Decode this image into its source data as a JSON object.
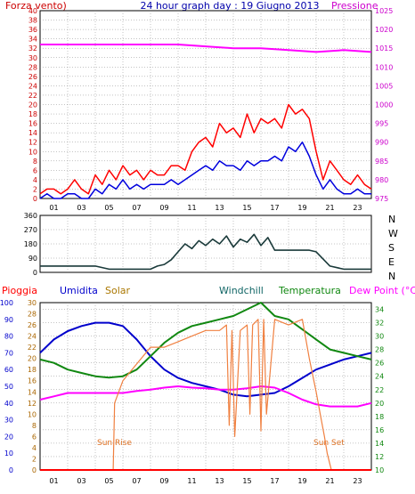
{
  "header": {
    "wind_label": "Forza vento)",
    "title": "24 hour graph day : 19 Giugno 2013",
    "pressure_label": "Pressione"
  },
  "direction_labels": [
    "N",
    "W",
    "S",
    "E",
    "N"
  ],
  "bottom_legend": {
    "rain": "Pioggia",
    "humidity": "Umidita",
    "solar": "Solar",
    "windchill": "Windchill",
    "temperature": "Temperatura",
    "dewpoint": "Dew Point (°C)"
  },
  "annotations": {
    "sunrise": "Sun Rise",
    "sunset": "Sun Set"
  },
  "colors": {
    "wind_gust": "#ff0000",
    "wind_avg": "#0000dd",
    "pressure": "#ff00ff",
    "direction": "#1a3a3a",
    "humidity": "#0000cc",
    "solar": "#f08040",
    "temperature": "#118811",
    "dewpoint": "#ff00ff",
    "rain": "#ff0000",
    "grid": "#888888",
    "axis_left_top": "#cc0000",
    "axis_right_top": "#cc00cc",
    "axis_right_bottom": "#118811"
  },
  "chart_data": [
    {
      "type": "line",
      "panel": "wind_pressure",
      "x_ticks": [
        "01",
        "03",
        "05",
        "07",
        "09",
        "11",
        "13",
        "15",
        "17",
        "19",
        "21",
        "23"
      ],
      "y_left_ticks": [
        0,
        2,
        4,
        6,
        8,
        10,
        12,
        14,
        16,
        18,
        20,
        22,
        24,
        26,
        28,
        30,
        32,
        34,
        36,
        38,
        40
      ],
      "y_right_ticks": [
        975,
        980,
        985,
        990,
        995,
        1000,
        1005,
        1010,
        1015,
        1020,
        1025
      ],
      "x_range": [
        0,
        24
      ],
      "y_left_range": [
        0,
        40
      ],
      "y_right_range": [
        975,
        1025
      ],
      "series": [
        {
          "name": "",
          "key": "gust",
          "axis": "left",
          "x": [
            0,
            0.5,
            1,
            1.5,
            2,
            2.5,
            3,
            3.5,
            4,
            4.5,
            5,
            5.5,
            6,
            6.5,
            7,
            7.5,
            8,
            8.5,
            9,
            9.5,
            10,
            10.5,
            11,
            11.5,
            12,
            12.5,
            13,
            13.5,
            14,
            14.5,
            15,
            15.5,
            16,
            16.5,
            17,
            17.5,
            18,
            18.5,
            19,
            19.5,
            20,
            20.5,
            21,
            21.5,
            22,
            22.5,
            23,
            23.5,
            24
          ],
          "values": [
            1,
            2,
            2,
            1,
            2,
            4,
            2,
            1,
            5,
            3,
            6,
            4,
            7,
            5,
            6,
            4,
            6,
            5,
            5,
            7,
            7,
            6,
            10,
            12,
            13,
            11,
            16,
            14,
            15,
            13,
            18,
            14,
            17,
            16,
            17,
            15,
            20,
            18,
            19,
            17,
            10,
            4,
            8,
            6,
            4,
            3,
            5,
            3,
            2
          ]
        },
        {
          "name": "",
          "key": "avg",
          "axis": "left",
          "x": [
            0,
            0.5,
            1,
            1.5,
            2,
            2.5,
            3,
            3.5,
            4,
            4.5,
            5,
            5.5,
            6,
            6.5,
            7,
            7.5,
            8,
            8.5,
            9,
            9.5,
            10,
            10.5,
            11,
            11.5,
            12,
            12.5,
            13,
            13.5,
            14,
            14.5,
            15,
            15.5,
            16,
            16.5,
            17,
            17.5,
            18,
            18.5,
            19,
            19.5,
            20,
            20.5,
            21,
            21.5,
            22,
            22.5,
            23,
            23.5,
            24
          ],
          "values": [
            0,
            1,
            0,
            0,
            1,
            1,
            0,
            0,
            2,
            1,
            3,
            2,
            4,
            2,
            3,
            2,
            3,
            3,
            3,
            4,
            3,
            4,
            5,
            6,
            7,
            6,
            8,
            7,
            7,
            6,
            8,
            7,
            8,
            8,
            9,
            8,
            11,
            10,
            12,
            9,
            5,
            2,
            4,
            2,
            1,
            1,
            2,
            1,
            1
          ]
        },
        {
          "name": "",
          "key": "pressure",
          "axis": "right",
          "x": [
            0,
            2,
            4,
            6,
            8,
            10,
            12,
            14,
            16,
            18,
            20,
            22,
            24
          ],
          "values": [
            1016,
            1016,
            1016,
            1016,
            1016,
            1016,
            1015.5,
            1015,
            1015,
            1014.5,
            1014,
            1014.5,
            1014
          ]
        }
      ]
    },
    {
      "type": "line",
      "panel": "wind_direction",
      "x_range": [
        0,
        24
      ],
      "y_ticks": [
        0,
        90,
        180,
        270,
        360
      ],
      "y_range": [
        0,
        360
      ],
      "series": [
        {
          "name": "",
          "key": "direction",
          "x": [
            0,
            1,
            2,
            3,
            4,
            5,
            6,
            7,
            8,
            8.5,
            9,
            9.5,
            10,
            10.5,
            11,
            11.5,
            12,
            12.5,
            13,
            13.5,
            14,
            14.5,
            15,
            15.5,
            16,
            16.5,
            17,
            18,
            19,
            19.5,
            20,
            21,
            22,
            23,
            24
          ],
          "values": [
            40,
            40,
            40,
            40,
            40,
            20,
            20,
            20,
            20,
            40,
            50,
            80,
            130,
            180,
            150,
            200,
            170,
            210,
            180,
            230,
            160,
            210,
            190,
            240,
            170,
            220,
            140,
            140,
            140,
            140,
            130,
            40,
            20,
            20,
            20
          ]
        }
      ]
    },
    {
      "type": "line",
      "panel": "climate",
      "x_range": [
        0,
        24
      ],
      "y_far_left_ticks": [
        0,
        10,
        20,
        30,
        40,
        50,
        60,
        70,
        80,
        90,
        100
      ],
      "y_left_ticks": [
        0,
        2,
        4,
        6,
        8,
        10,
        12,
        14,
        16,
        18,
        20,
        22,
        24,
        26,
        28,
        30
      ],
      "y_right_ticks": [
        10,
        12,
        14,
        16,
        18,
        20,
        22,
        24,
        26,
        28,
        30,
        32,
        34
      ],
      "y_far_left_range": [
        0,
        100
      ],
      "y_right_range": [
        10,
        35
      ],
      "series": [
        {
          "name": "",
          "key": "humidity",
          "axis": "far_left",
          "x": [
            0,
            1,
            2,
            3,
            4,
            5,
            6,
            7,
            8,
            9,
            10,
            11,
            12,
            13,
            14,
            15,
            16,
            17,
            18,
            19,
            20,
            21,
            22,
            23,
            24
          ],
          "values": [
            70,
            78,
            83,
            86,
            88,
            88,
            86,
            78,
            68,
            60,
            55,
            52,
            50,
            48,
            45,
            44,
            45,
            46,
            50,
            55,
            60,
            63,
            66,
            68,
            70
          ]
        },
        {
          "name": "",
          "key": "temperature",
          "axis": "right",
          "x": [
            0,
            1,
            2,
            3,
            4,
            5,
            6,
            7,
            8,
            9,
            10,
            11,
            12,
            13,
            14,
            15,
            16,
            17,
            18,
            19,
            20,
            21,
            22,
            23,
            24
          ],
          "values": [
            26.5,
            26,
            25,
            24.5,
            24,
            23.8,
            24,
            25,
            27,
            29,
            30.5,
            31.5,
            32,
            32.5,
            33,
            34,
            35,
            33,
            32.5,
            31,
            29.5,
            28,
            27.5,
            27,
            26.5
          ]
        },
        {
          "name": "",
          "key": "dewpoint",
          "axis": "right",
          "x": [
            0,
            1,
            2,
            3,
            4,
            5,
            6,
            7,
            8,
            9,
            10,
            11,
            12,
            13,
            14,
            15,
            16,
            17,
            18,
            19,
            20,
            21,
            22,
            23,
            24
          ],
          "values": [
            20.5,
            21,
            21.5,
            21.5,
            21.5,
            21.5,
            21.5,
            21.8,
            22,
            22.3,
            22.5,
            22.3,
            22.2,
            22,
            22,
            22.2,
            22.5,
            22.3,
            21.5,
            20.5,
            19.8,
            19.5,
            19.5,
            19.5,
            20
          ]
        },
        {
          "name": "",
          "key": "solar",
          "axis": "left",
          "x": [
            5.3,
            5.4,
            6,
            7,
            8,
            9,
            10,
            11,
            12,
            13,
            13.5,
            13.7,
            13.9,
            14.1,
            14.5,
            15,
            15.2,
            15.4,
            15.8,
            16,
            16.2,
            16.4,
            17,
            18,
            19,
            19.5,
            20,
            20.3,
            20.6,
            20.8,
            21,
            21.1
          ],
          "values": [
            0,
            12,
            16,
            19,
            22,
            22,
            23,
            24,
            25,
            25,
            26,
            8,
            25,
            6,
            25,
            26,
            10,
            26,
            27,
            7,
            27,
            10,
            27,
            26,
            27,
            20,
            14,
            10,
            6,
            3,
            1,
            0
          ]
        },
        {
          "name": "",
          "key": "rain",
          "axis": "left",
          "x": [
            0,
            24
          ],
          "values": [
            0,
            0
          ]
        }
      ]
    }
  ]
}
